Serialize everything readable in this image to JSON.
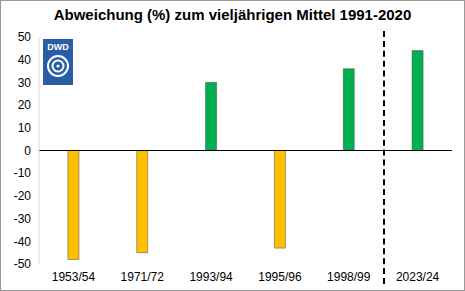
{
  "chart_data": {
    "type": "bar",
    "title": "Abweichung (%) zum vieljährigen Mittel 1991-2020",
    "annotations": [
      "DWD"
    ],
    "categories": [
      "1953/54",
      "1971/72",
      "1993/94",
      "1995/96",
      "1998/99",
      "2023/24"
    ],
    "values": [
      -48,
      -45,
      30,
      -43,
      36,
      44
    ],
    "colors": [
      "#ffc000",
      "#ffc000",
      "#00b050",
      "#ffc000",
      "#00b050",
      "#00b050"
    ],
    "ylim": [
      -50,
      50
    ],
    "yticks": [
      -50,
      -40,
      -30,
      -20,
      -10,
      0,
      10,
      20,
      30,
      40,
      50
    ],
    "grid": false
  }
}
